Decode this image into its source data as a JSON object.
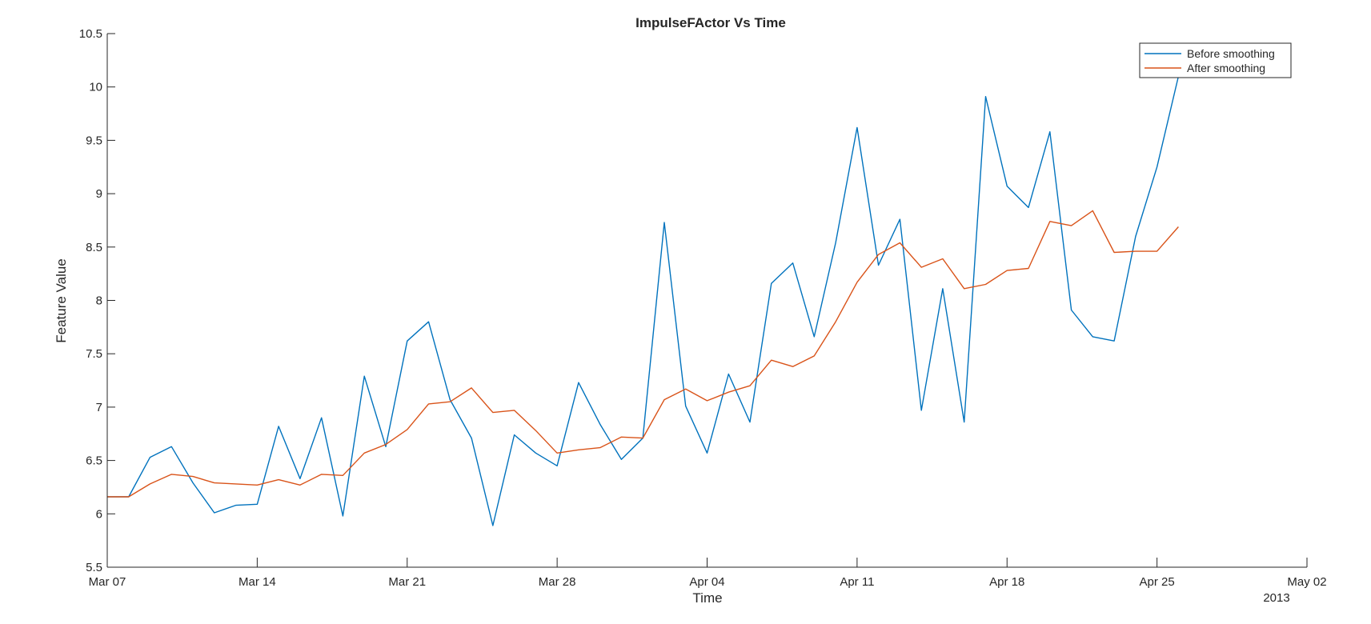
{
  "chart_data": {
    "type": "line",
    "title": "ImpulseFActor Vs Time",
    "xlabel": "Time",
    "ylabel": "Feature Value",
    "x_secondary_label": "2013",
    "x_tick_labels": [
      "Mar 07",
      "Mar 14",
      "Mar 21",
      "Mar 28",
      "Apr 04",
      "Apr 11",
      "Apr 18",
      "Apr 25",
      "May 02"
    ],
    "xlim": [
      "2013-03-07",
      "2013-05-02"
    ],
    "ylim": [
      5.5,
      10.5
    ],
    "y_ticks": [
      5.5,
      6,
      6.5,
      7,
      7.5,
      8,
      8.5,
      9,
      9.5,
      10,
      10.5
    ],
    "y_tick_labels": [
      "5.5",
      "6",
      "6.5",
      "7",
      "7.5",
      "8",
      "8.5",
      "9",
      "9.5",
      "10",
      "10.5"
    ],
    "grid": false,
    "legend_position": "top-right",
    "x": [
      "2013-03-07",
      "2013-03-08",
      "2013-03-09",
      "2013-03-10",
      "2013-03-11",
      "2013-03-12",
      "2013-03-13",
      "2013-03-14",
      "2013-03-15",
      "2013-03-16",
      "2013-03-17",
      "2013-03-18",
      "2013-03-19",
      "2013-03-20",
      "2013-03-21",
      "2013-03-22",
      "2013-03-23",
      "2013-03-24",
      "2013-03-25",
      "2013-03-26",
      "2013-03-27",
      "2013-03-28",
      "2013-03-29",
      "2013-03-30",
      "2013-03-31",
      "2013-04-01",
      "2013-04-02",
      "2013-04-03",
      "2013-04-04",
      "2013-04-05",
      "2013-04-06",
      "2013-04-07",
      "2013-04-08",
      "2013-04-09",
      "2013-04-10",
      "2013-04-11",
      "2013-04-12",
      "2013-04-13",
      "2013-04-14",
      "2013-04-15",
      "2013-04-16",
      "2013-04-17",
      "2013-04-18",
      "2013-04-19",
      "2013-04-20",
      "2013-04-21",
      "2013-04-22",
      "2013-04-23",
      "2013-04-24",
      "2013-04-25",
      "2013-04-26"
    ],
    "series": [
      {
        "name": "Before smoothing",
        "color": "#0072BD",
        "values": [
          6.16,
          6.16,
          6.53,
          6.63,
          6.29,
          6.01,
          6.08,
          6.09,
          6.82,
          6.33,
          6.9,
          5.98,
          7.29,
          6.63,
          7.62,
          7.8,
          7.07,
          6.71,
          5.89,
          6.74,
          6.57,
          6.45,
          7.23,
          6.84,
          6.51,
          6.71,
          8.73,
          7.01,
          6.57,
          7.31,
          6.86,
          8.16,
          8.35,
          7.66,
          8.54,
          9.62,
          8.33,
          8.76,
          6.97,
          8.11,
          6.86,
          9.91,
          9.07,
          8.87,
          9.58,
          7.91,
          7.66,
          7.62,
          8.6,
          9.25,
          10.1
        ]
      },
      {
        "name": "After smoothing",
        "color": "#D95319",
        "values": [
          6.16,
          6.16,
          6.28,
          6.37,
          6.35,
          6.29,
          6.28,
          6.27,
          6.32,
          6.27,
          6.37,
          6.36,
          6.57,
          6.65,
          6.79,
          7.03,
          7.05,
          7.18,
          6.95,
          6.97,
          6.78,
          6.57,
          6.6,
          6.62,
          6.72,
          6.71,
          7.07,
          7.17,
          7.06,
          7.14,
          7.2,
          7.44,
          7.38,
          7.48,
          7.8,
          8.17,
          8.43,
          8.54,
          8.31,
          8.39,
          8.11,
          8.15,
          8.28,
          8.3,
          8.74,
          8.7,
          8.84,
          8.45,
          8.46,
          8.46,
          8.69
        ]
      }
    ]
  }
}
